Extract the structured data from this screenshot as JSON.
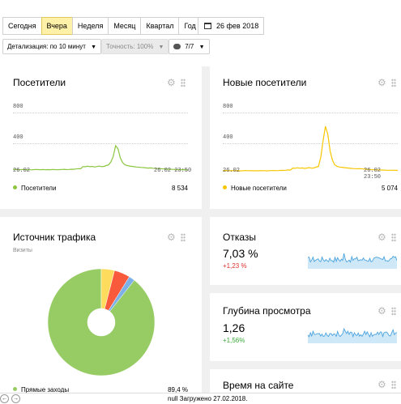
{
  "toolbar": {
    "periods": [
      "Сегодня",
      "Вчера",
      "Неделя",
      "Месяц",
      "Квартал",
      "Год"
    ],
    "active_period": "Вчера",
    "date": "26 фев 2018",
    "detail_label": "Детализация:",
    "detail_value": "по 10 минут",
    "accuracy": "Точность: 100%",
    "segments": "7/7"
  },
  "visitors": {
    "title": "Посетители",
    "y_ticks": [
      "800",
      "400"
    ],
    "x_start": "26.02",
    "x_end": "26.02 23:50",
    "legend": "Посетители",
    "value": "8 534",
    "color": "#8cc63f"
  },
  "new_visitors": {
    "title": "Новые посетители",
    "y_ticks": [
      "800",
      "400"
    ],
    "x_start": "26.02",
    "x_end": "26.02 23:50",
    "legend": "Новые посетители",
    "value": "5 074",
    "color": "#f7c600"
  },
  "traffic": {
    "title": "Источник трафика",
    "subtitle": "Визиты",
    "legend": "Прямые заходы",
    "value": "89,4 %"
  },
  "bounce": {
    "title": "Отказы",
    "value": "7,03 %",
    "delta": "+1,23 %",
    "delta_color": "#e0302f"
  },
  "depth": {
    "title": "Глубина просмотра",
    "value": "1,26",
    "delta": "+1,56%",
    "delta_color": "#3aa83a"
  },
  "time": {
    "title": "Время на сайте"
  },
  "status": {
    "text": "null Загружено 27.02.2018."
  },
  "chart_data": [
    {
      "type": "line",
      "title": "Посетители",
      "series": [
        {
          "name": "Посетители",
          "values": [
            60,
            62,
            58,
            57,
            60,
            58,
            57,
            56,
            55,
            58,
            60,
            58,
            57,
            59,
            56,
            58,
            57,
            60,
            58,
            56,
            58,
            60,
            62,
            58,
            60,
            63,
            62,
            66,
            70,
            68,
            98,
            95,
            102,
            96,
            100,
            92,
            98,
            104,
            96,
            100,
            110,
            120,
            160,
            230,
            370,
            330,
            210,
            150,
            120,
            110,
            104,
            100,
            96,
            92,
            90,
            86,
            84,
            80,
            78,
            80,
            76,
            74,
            72,
            70,
            68,
            66,
            64,
            62,
            62,
            60,
            58,
            57,
            56,
            58,
            55,
            54
          ]
        }
      ],
      "ylim": [
        0,
        800
      ]
    },
    {
      "type": "line",
      "title": "Новые посетители",
      "series": [
        {
          "name": "Новые посетители",
          "values": [
            45,
            46,
            44,
            43,
            45,
            44,
            43,
            42,
            42,
            44,
            45,
            44,
            43,
            44,
            42,
            44,
            43,
            45,
            44,
            42,
            44,
            45,
            46,
            44,
            45,
            48,
            47,
            50,
            54,
            52,
            78,
            76,
            82,
            76,
            80,
            74,
            78,
            84,
            76,
            80,
            90,
            100,
            220,
            430,
            620,
            520,
            300,
            180,
            120,
            100,
            92,
            88,
            84,
            80,
            78,
            74,
            72,
            70,
            68,
            70,
            66,
            64,
            62,
            60,
            58,
            56,
            55,
            54,
            53,
            52,
            50,
            50,
            49,
            50,
            48,
            47
          ]
        }
      ],
      "ylim": [
        0,
        800
      ]
    },
    {
      "type": "pie",
      "title": "Источник трафика",
      "labels": [
        "Прямые заходы",
        "",
        "",
        ""
      ],
      "values": [
        89.4,
        4.0,
        4.8,
        1.8
      ],
      "colors": [
        "#97cc64",
        "#fddb5c",
        "#fa5a3c",
        "#7cb0e6"
      ]
    }
  ]
}
